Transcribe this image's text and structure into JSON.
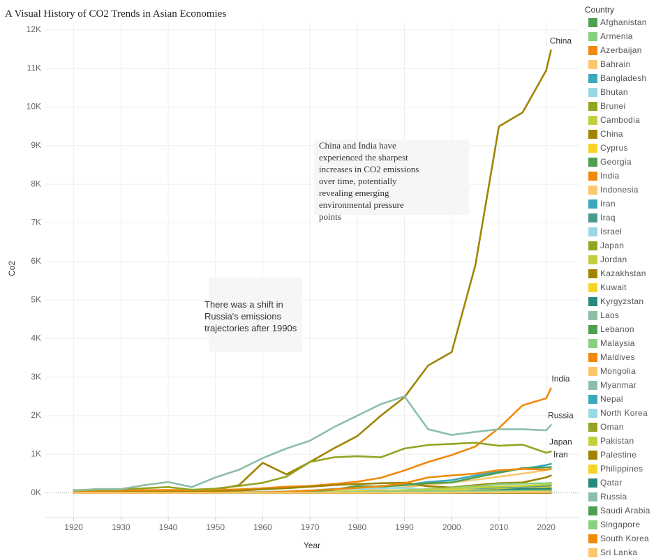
{
  "chart_data": {
    "type": "line",
    "title": "A Visual History of CO2 Trends in Asian Economies",
    "x_label": "Year",
    "y_label": "Co2",
    "legend_title": "Country",
    "legend_position": "right",
    "grid": true,
    "xlim": [
      1914,
      2027
    ],
    "xticks": [
      1920,
      1930,
      1940,
      1950,
      1960,
      1970,
      1980,
      1990,
      2000,
      2010,
      2020
    ],
    "ylim": [
      -640,
      12180
    ],
    "yticks": [
      {
        "value": 0,
        "label": "0K"
      },
      {
        "value": 1000,
        "label": "1K"
      },
      {
        "value": 2000,
        "label": "2K"
      },
      {
        "value": 3000,
        "label": "3K"
      },
      {
        "value": 4000,
        "label": "4K"
      },
      {
        "value": 5000,
        "label": "5K"
      },
      {
        "value": 6000,
        "label": "6K"
      },
      {
        "value": 7000,
        "label": "7K"
      },
      {
        "value": 8000,
        "label": "8K"
      },
      {
        "value": 9000,
        "label": "9K"
      },
      {
        "value": 10000,
        "label": "10K"
      },
      {
        "value": 11000,
        "label": "11K"
      },
      {
        "value": 12000,
        "label": "12K"
      }
    ],
    "annotations": [
      {
        "text": "China and India have experienced the sharpest increases in CO2 emissions over time, potentially revealing emerging environmental pressure points"
      },
      {
        "text": "There was a shift in Russia's emissions trajectories after 1990s"
      }
    ],
    "x": [
      1920,
      1925,
      1930,
      1935,
      1940,
      1945,
      1950,
      1955,
      1960,
      1965,
      1970,
      1975,
      1980,
      1985,
      1990,
      1995,
      2000,
      2005,
      2010,
      2015,
      2020,
      2021
    ],
    "series": [
      {
        "name": "Afghanistan",
        "color": "#4e9f50",
        "values": [
          0,
          0,
          0,
          0,
          0,
          0,
          0,
          0,
          0,
          1,
          2,
          2,
          2,
          3,
          2,
          1,
          1,
          1,
          8,
          10,
          11,
          10
        ]
      },
      {
        "name": "Armenia",
        "color": "#87d180",
        "values": [
          0,
          0,
          0,
          0,
          1,
          1,
          2,
          3,
          5,
          7,
          10,
          14,
          18,
          20,
          21,
          3,
          3,
          4,
          4,
          5,
          7,
          7
        ]
      },
      {
        "name": "Azerbaijan",
        "color": "#ef8a0c",
        "values": [
          2,
          3,
          5,
          8,
          10,
          8,
          12,
          16,
          20,
          25,
          30,
          35,
          40,
          45,
          55,
          30,
          30,
          38,
          28,
          37,
          34,
          37
        ]
      },
      {
        "name": "Bahrain",
        "color": "#fcc66d",
        "values": [
          0,
          0,
          0,
          0,
          0,
          0,
          0,
          0,
          1,
          1,
          2,
          3,
          6,
          8,
          12,
          15,
          18,
          22,
          26,
          33,
          33,
          34
        ]
      },
      {
        "name": "Bangladesh",
        "color": "#3ca8bc",
        "values": [
          0,
          0,
          0,
          0,
          0,
          0,
          0,
          0,
          0,
          1,
          3,
          3,
          5,
          7,
          13,
          17,
          23,
          33,
          54,
          77,
          92,
          98
        ]
      },
      {
        "name": "Bhutan",
        "color": "#98d9e4",
        "values": [
          0,
          0,
          0,
          0,
          0,
          0,
          0,
          0,
          0,
          0,
          0,
          0,
          0,
          0,
          0,
          0,
          0,
          1,
          1,
          1,
          2,
          2
        ]
      },
      {
        "name": "Brunei",
        "color": "#94a323",
        "values": [
          0,
          0,
          0,
          0,
          0,
          0,
          0,
          0,
          0,
          1,
          3,
          5,
          8,
          7,
          6,
          6,
          6,
          7,
          9,
          7,
          10,
          10
        ]
      },
      {
        "name": "Cambodia",
        "color": "#c3ce3d",
        "values": [
          0,
          0,
          0,
          0,
          0,
          0,
          0,
          0,
          0,
          1,
          1,
          1,
          0,
          0,
          1,
          1,
          2,
          3,
          5,
          8,
          17,
          17
        ]
      },
      {
        "name": "China",
        "color": "#a08400",
        "end_label": true,
        "values": [
          20,
          27,
          35,
          45,
          60,
          40,
          79,
          200,
          780,
          480,
          800,
          1150,
          1470,
          2000,
          2480,
          3300,
          3650,
          5900,
          9500,
          9860,
          10950,
          11470
        ]
      },
      {
        "name": "Cyprus",
        "color": "#f7d42a",
        "values": [
          0,
          0,
          0,
          0,
          0,
          0,
          0,
          0,
          1,
          1,
          2,
          2,
          3,
          4,
          5,
          6,
          7,
          7,
          8,
          7,
          7,
          7
        ]
      },
      {
        "name": "Georgia",
        "color": "#4e9f50",
        "values": [
          1,
          1,
          2,
          3,
          4,
          3,
          5,
          7,
          9,
          12,
          15,
          18,
          20,
          22,
          30,
          3,
          5,
          6,
          6,
          10,
          10,
          11
        ]
      },
      {
        "name": "India",
        "color": "#ef8a0c",
        "end_label": true,
        "values": [
          55,
          60,
          65,
          70,
          75,
          70,
          75,
          90,
          120,
          160,
          180,
          230,
          290,
          390,
          580,
          800,
          980,
          1200,
          1680,
          2270,
          2450,
          2710
        ]
      },
      {
        "name": "Indonesia",
        "color": "#fcc66d",
        "values": [
          4,
          5,
          6,
          7,
          8,
          3,
          5,
          10,
          22,
          22,
          30,
          45,
          80,
          100,
          150,
          210,
          270,
          340,
          420,
          500,
          590,
          620
        ]
      },
      {
        "name": "Iran",
        "color": "#3ca8bc",
        "end_label": true,
        "values": [
          1,
          2,
          3,
          4,
          5,
          6,
          8,
          12,
          20,
          30,
          60,
          100,
          120,
          180,
          200,
          280,
          330,
          450,
          560,
          620,
          720,
          750
        ]
      },
      {
        "name": "Iraq",
        "color": "#4b9a8f",
        "values": [
          0,
          0,
          1,
          2,
          2,
          2,
          4,
          6,
          10,
          14,
          18,
          25,
          40,
          40,
          60,
          80,
          80,
          100,
          120,
          160,
          180,
          190
        ]
      },
      {
        "name": "Israel",
        "color": "#98d9e4",
        "values": [
          0,
          0,
          0,
          0,
          1,
          1,
          3,
          5,
          8,
          12,
          16,
          20,
          22,
          25,
          34,
          45,
          54,
          57,
          66,
          63,
          55,
          57
        ]
      },
      {
        "name": "Japan",
        "color": "#94a323",
        "end_label": true,
        "values": [
          70,
          80,
          90,
          120,
          150,
          80,
          110,
          180,
          260,
          420,
          800,
          920,
          950,
          920,
          1150,
          1240,
          1270,
          1300,
          1220,
          1250,
          1040,
          1070
        ]
      },
      {
        "name": "Jordan",
        "color": "#c3ce3d",
        "values": [
          0,
          0,
          0,
          0,
          0,
          0,
          0,
          1,
          1,
          2,
          2,
          3,
          5,
          8,
          10,
          13,
          15,
          20,
          21,
          25,
          24,
          25
        ]
      },
      {
        "name": "Kazakhstan",
        "color": "#a08400",
        "values": [
          5,
          8,
          12,
          18,
          25,
          20,
          35,
          60,
          90,
          120,
          160,
          200,
          230,
          250,
          260,
          170,
          140,
          200,
          250,
          270,
          400,
          450
        ]
      },
      {
        "name": "Kuwait",
        "color": "#f7d42a",
        "values": [
          0,
          0,
          0,
          0,
          0,
          0,
          3,
          10,
          18,
          25,
          35,
          45,
          50,
          35,
          30,
          40,
          55,
          75,
          90,
          100,
          90,
          95
        ]
      },
      {
        "name": "Kyrgyzstan",
        "color": "#26897e",
        "values": [
          0,
          0,
          0,
          0,
          1,
          1,
          2,
          3,
          5,
          6,
          8,
          9,
          10,
          11,
          12,
          5,
          5,
          5,
          6,
          10,
          9,
          10
        ]
      },
      {
        "name": "Laos",
        "color": "#8dbfa8",
        "values": [
          0,
          0,
          0,
          0,
          0,
          0,
          0,
          0,
          0,
          0,
          1,
          1,
          0,
          0,
          0,
          1,
          1,
          1,
          2,
          18,
          18,
          19
        ]
      },
      {
        "name": "Lebanon",
        "color": "#4e9f50",
        "values": [
          0,
          0,
          0,
          0,
          0,
          0,
          1,
          2,
          2,
          3,
          4,
          5,
          6,
          7,
          9,
          13,
          15,
          16,
          20,
          25,
          24,
          24
        ]
      },
      {
        "name": "Malaysia",
        "color": "#87d180",
        "values": [
          1,
          1,
          1,
          1,
          2,
          1,
          3,
          4,
          5,
          8,
          12,
          16,
          25,
          35,
          55,
          100,
          125,
          170,
          220,
          240,
          250,
          260
        ]
      },
      {
        "name": "Maldives",
        "color": "#ef8a0c",
        "values": [
          0,
          0,
          0,
          0,
          0,
          0,
          0,
          0,
          0,
          0,
          0,
          0,
          0,
          0,
          0,
          0,
          0,
          1,
          1,
          1,
          2,
          2
        ]
      },
      {
        "name": "Mongolia",
        "color": "#fcc66d",
        "values": [
          0,
          0,
          0,
          0,
          0,
          0,
          1,
          2,
          3,
          4,
          5,
          7,
          10,
          12,
          14,
          8,
          8,
          10,
          12,
          30,
          40,
          40
        ]
      },
      {
        "name": "Myanmar",
        "color": "#8dbfa8",
        "values": [
          1,
          1,
          1,
          2,
          2,
          1,
          2,
          3,
          3,
          4,
          5,
          5,
          7,
          8,
          5,
          8,
          10,
          12,
          13,
          25,
          35,
          35
        ]
      },
      {
        "name": "Nepal",
        "color": "#3ca8bc",
        "values": [
          0,
          0,
          0,
          0,
          0,
          0,
          0,
          0,
          0,
          0,
          0,
          0,
          0,
          0,
          1,
          1,
          2,
          3,
          5,
          10,
          15,
          16
        ]
      },
      {
        "name": "North Korea",
        "color": "#98d9e4",
        "values": [
          0,
          0,
          1,
          2,
          3,
          2,
          3,
          10,
          25,
          40,
          60,
          80,
          100,
          120,
          130,
          80,
          80,
          85,
          75,
          45,
          60,
          60
        ]
      },
      {
        "name": "Oman",
        "color": "#94a323",
        "values": [
          0,
          0,
          0,
          0,
          0,
          0,
          0,
          0,
          0,
          0,
          1,
          2,
          5,
          8,
          12,
          20,
          30,
          50,
          70,
          75,
          75,
          80
        ]
      },
      {
        "name": "Pakistan",
        "color": "#c3ce3d",
        "values": [
          2,
          3,
          4,
          5,
          6,
          6,
          6,
          8,
          10,
          15,
          20,
          25,
          35,
          50,
          70,
          85,
          100,
          135,
          160,
          180,
          210,
          230
        ]
      },
      {
        "name": "Palestine",
        "color": "#a08400",
        "values": [
          0,
          0,
          0,
          0,
          0,
          0,
          0,
          0,
          0,
          0,
          0,
          0,
          0,
          0,
          0,
          1,
          1,
          2,
          2,
          3,
          3,
          3
        ]
      },
      {
        "name": "Philippines",
        "color": "#f7d42a",
        "values": [
          1,
          1,
          2,
          2,
          3,
          2,
          4,
          6,
          8,
          12,
          20,
          25,
          35,
          28,
          40,
          50,
          70,
          70,
          80,
          110,
          135,
          145
        ]
      },
      {
        "name": "Qatar",
        "color": "#26897e",
        "values": [
          0,
          0,
          0,
          0,
          0,
          0,
          0,
          1,
          2,
          3,
          5,
          10,
          15,
          20,
          25,
          30,
          40,
          60,
          70,
          105,
          110,
          115
        ]
      },
      {
        "name": "Russia",
        "color": "#8dbfa8",
        "end_label": true,
        "values": [
          60,
          100,
          100,
          200,
          280,
          150,
          400,
          600,
          900,
          1150,
          1350,
          1700,
          2000,
          2300,
          2500,
          1650,
          1500,
          1580,
          1650,
          1650,
          1620,
          1760
        ]
      },
      {
        "name": "Saudi Arabia",
        "color": "#4e9f50",
        "values": [
          0,
          0,
          0,
          0,
          0,
          0,
          2,
          5,
          10,
          20,
          40,
          80,
          180,
          160,
          200,
          250,
          270,
          400,
          520,
          640,
          660,
          670
        ]
      },
      {
        "name": "Singapore",
        "color": "#87d180",
        "values": [
          0,
          0,
          0,
          0,
          0,
          0,
          1,
          2,
          3,
          5,
          8,
          15,
          25,
          30,
          40,
          45,
          50,
          45,
          50,
          50,
          45,
          45
        ]
      },
      {
        "name": "South Korea",
        "color": "#ef8a0c",
        "values": [
          0,
          0,
          0,
          0,
          0,
          0,
          3,
          8,
          15,
          30,
          60,
          90,
          130,
          170,
          250,
          400,
          450,
          500,
          590,
          620,
          600,
          620
        ]
      },
      {
        "name": "Sri Lanka",
        "color": "#fcc66d",
        "values": [
          1,
          1,
          1,
          1,
          1,
          1,
          1,
          2,
          3,
          3,
          4,
          4,
          4,
          5,
          4,
          6,
          10,
          13,
          14,
          22,
          20,
          21
        ]
      }
    ]
  }
}
